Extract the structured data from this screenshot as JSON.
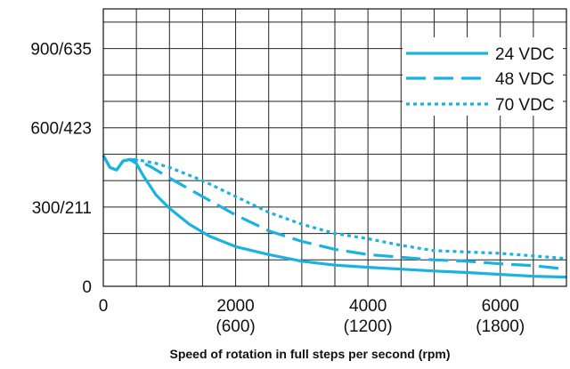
{
  "chart_data": {
    "type": "line",
    "title": "",
    "xlabel": "Speed of rotation in full steps per second (rpm)",
    "ylabel": "",
    "xlim": [
      0,
      7000
    ],
    "ylim": [
      0,
      1050
    ],
    "grid": true,
    "legend_position": "top-right",
    "line_color": "#1ab3e0",
    "x_ticks": [
      {
        "value": 0,
        "label": "0",
        "sublabel": ""
      },
      {
        "value": 2000,
        "label": "2000",
        "sublabel": "(600)"
      },
      {
        "value": 4000,
        "label": "4000",
        "sublabel": "(1200)"
      },
      {
        "value": 6000,
        "label": "6000",
        "sublabel": "(1800)"
      }
    ],
    "y_ticks": [
      {
        "value": 0,
        "label": "0"
      },
      {
        "value": 300,
        "label": "300/211"
      },
      {
        "value": 600,
        "label": "600/423"
      },
      {
        "value": 900,
        "label": "900/635"
      }
    ],
    "series": [
      {
        "name": "24 VDC",
        "style": "solid",
        "x": [
          0,
          100,
          200,
          300,
          400,
          500,
          600,
          800,
          1000,
          1300,
          1600,
          2000,
          2500,
          3000,
          3500,
          4000,
          4500,
          5000,
          5500,
          6000,
          6500,
          7000
        ],
        "y": [
          495,
          450,
          440,
          475,
          480,
          465,
          420,
          345,
          295,
          235,
          190,
          150,
          120,
          95,
          80,
          72,
          65,
          58,
          52,
          45,
          38,
          35
        ]
      },
      {
        "name": "48 VDC",
        "style": "dashed",
        "x": [
          0,
          100,
          200,
          300,
          400,
          500,
          700,
          1000,
          1500,
          2000,
          2500,
          3000,
          3500,
          4000,
          4500,
          5000,
          5500,
          6000,
          6500,
          7000
        ],
        "y": [
          495,
          450,
          440,
          475,
          480,
          478,
          455,
          410,
          340,
          270,
          210,
          170,
          140,
          120,
          110,
          100,
          95,
          85,
          78,
          65
        ]
      },
      {
        "name": "70 VDC",
        "style": "dotted",
        "x": [
          0,
          100,
          200,
          300,
          400,
          500,
          800,
          1000,
          1500,
          2000,
          2500,
          3000,
          3500,
          4000,
          4500,
          5000,
          5500,
          6000,
          6500,
          7000
        ],
        "y": [
          495,
          450,
          440,
          475,
          480,
          480,
          465,
          450,
          400,
          340,
          280,
          235,
          200,
          180,
          155,
          135,
          130,
          125,
          115,
          105
        ]
      }
    ]
  }
}
